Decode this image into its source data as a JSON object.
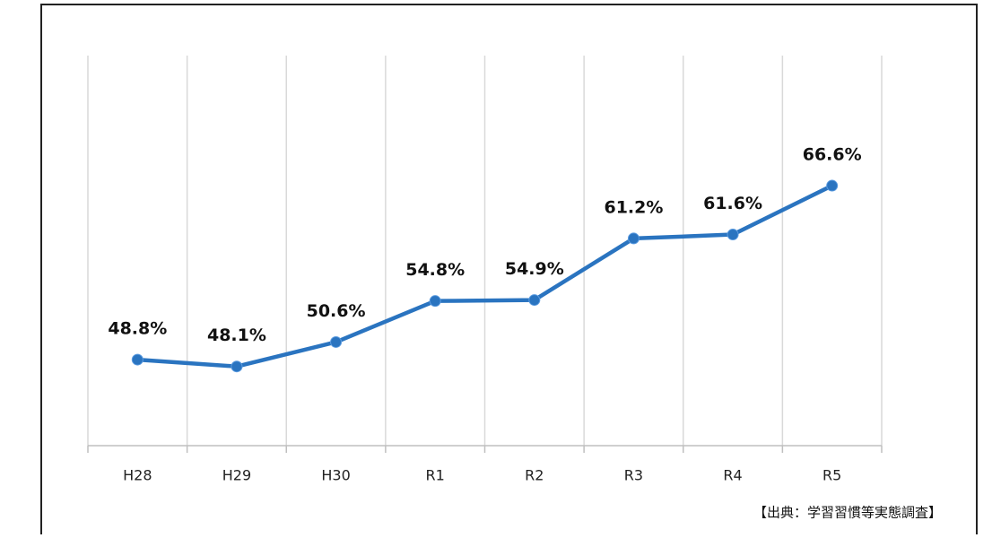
{
  "chart_data": {
    "type": "line",
    "categories": [
      "H28",
      "H29",
      "H30",
      "R1",
      "R2",
      "R3",
      "R4",
      "R5"
    ],
    "values": [
      48.8,
      48.1,
      50.6,
      54.8,
      54.9,
      61.2,
      61.6,
      66.6
    ],
    "value_labels": [
      "48.8%",
      "48.1%",
      "50.6%",
      "54.8%",
      "54.9%",
      "61.2%",
      "61.6%",
      "66.6%"
    ],
    "color": "#2a74c0",
    "ylim": [
      40,
      80
    ],
    "grid": true,
    "annotation": "【出典：学習習慣等実態調査】"
  }
}
